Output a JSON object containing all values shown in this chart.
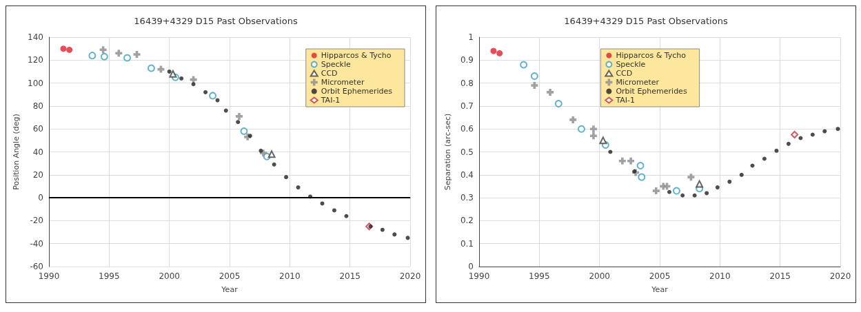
{
  "chart_data": [
    {
      "type": "scatter",
      "title": "16439+4329 D15 Past Observations",
      "xlabel": "Year",
      "ylabel": "Position Angle (deg)",
      "xlim": [
        1990,
        2020
      ],
      "xticks": [
        1990,
        1995,
        2000,
        2005,
        2010,
        2015,
        2020
      ],
      "ylim": [
        -60,
        140
      ],
      "yticks": [
        -60,
        -40,
        -20,
        0,
        20,
        40,
        60,
        80,
        100,
        120,
        140
      ],
      "grid": true,
      "legend": "top right",
      "ref_lines": [
        {
          "axis": "y",
          "value": 0,
          "color": "#000000"
        }
      ],
      "series": [
        {
          "name": "Hipparcos & Tycho",
          "color": "#e0202e",
          "marker": "circle",
          "x": [
            1991.2,
            1991.7
          ],
          "values": [
            130,
            129
          ]
        },
        {
          "name": "Speckle",
          "color": "#3a9fc0",
          "marker": "circle",
          "x": [
            1993.6,
            1994.6,
            1996.5,
            1998.5,
            2000.5,
            2003.6,
            2006.2,
            2008.1
          ],
          "values": [
            124,
            123,
            122,
            113,
            105,
            89,
            58,
            36
          ]
        },
        {
          "name": "CCD",
          "color": "#404040",
          "marker": "triangle",
          "x": [
            2000.3,
            2008.5
          ],
          "values": [
            108,
            38
          ]
        },
        {
          "name": "Micrometer",
          "color": "#8a8a8a",
          "marker": "cross",
          "x": [
            1994.5,
            1995.8,
            1997.3,
            1999.3,
            2002,
            2005.8,
            2006.5,
            2007.8
          ],
          "values": [
            129,
            126,
            125,
            112,
            103,
            71,
            53,
            39
          ]
        },
        {
          "name": "Orbit Ephemerides",
          "color": "#202020",
          "marker": "circle",
          "x": [
            2000,
            2001,
            2002,
            2003,
            2004,
            2004.7,
            2005.7,
            2006.7,
            2007.6,
            2008.7,
            2009.7,
            2010.7,
            2011.7,
            2012.7,
            2013.7,
            2014.7,
            2016.7,
            2017.7,
            2018.7,
            2019.8
          ],
          "values": [
            110,
            104,
            99,
            92,
            85,
            76,
            66,
            54,
            41,
            29,
            18,
            9,
            1,
            -5,
            -11,
            -16,
            -25,
            -28,
            -32,
            -35
          ]
        },
        {
          "name": "TAI-1",
          "color": "#c83040",
          "marker": "diamond",
          "x": [
            2016.6
          ],
          "values": [
            -25
          ]
        }
      ]
    },
    {
      "type": "scatter",
      "title": "16439+4329 D15 Past Observations",
      "xlabel": "Year",
      "ylabel": "Separation (arc-sec)",
      "xlim": [
        1990,
        2020
      ],
      "xticks": [
        1990,
        1995,
        2000,
        2005,
        2010,
        2015,
        2020
      ],
      "ylim": [
        0,
        1
      ],
      "yticks": [
        0,
        0.1,
        0.2,
        0.3,
        0.4,
        0.5,
        0.6,
        0.7,
        0.8,
        0.9,
        1
      ],
      "grid": true,
      "legend": "top",
      "series": [
        {
          "name": "Hipparcos & Tycho",
          "color": "#e0202e",
          "marker": "circle",
          "x": [
            1991.2,
            1991.7
          ],
          "values": [
            0.94,
            0.93
          ]
        },
        {
          "name": "Speckle",
          "color": "#3a9fc0",
          "marker": "circle",
          "x": [
            1993.7,
            1994.6,
            1996.6,
            1998.5,
            2000.5,
            2003.4,
            2003.5,
            2006.4,
            2008.3
          ],
          "values": [
            0.88,
            0.83,
            0.71,
            0.6,
            0.53,
            0.44,
            0.39,
            0.33,
            0.34
          ]
        },
        {
          "name": "CCD",
          "color": "#404040",
          "marker": "triangle",
          "x": [
            2000.3,
            2008.3
          ],
          "values": [
            0.55,
            0.36
          ]
        },
        {
          "name": "Micrometer",
          "color": "#8a8a8a",
          "marker": "cross",
          "x": [
            1994.6,
            1995.9,
            1997.8,
            1999.5,
            1999.5,
            2001.9,
            2002.6,
            2003,
            2004.7,
            2005.3,
            2005.6,
            2007.6
          ],
          "values": [
            0.79,
            0.76,
            0.64,
            0.6,
            0.57,
            0.46,
            0.46,
            0.41,
            0.33,
            0.35,
            0.35,
            0.39
          ]
        },
        {
          "name": "Orbit Ephemerides",
          "color": "#202020",
          "marker": "circle",
          "x": [
            2000.9,
            2002.9,
            2005.8,
            2006.9,
            2007.9,
            2008.9,
            2009.8,
            2010.8,
            2011.8,
            2012.7,
            2013.7,
            2014.7,
            2015.7,
            2016.7,
            2017.7,
            2018.7,
            2019.8
          ],
          "values": [
            0.5,
            0.415,
            0.325,
            0.31,
            0.31,
            0.32,
            0.345,
            0.37,
            0.4,
            0.44,
            0.47,
            0.505,
            0.535,
            0.56,
            0.575,
            0.59,
            0.6
          ]
        },
        {
          "name": "TAI-1",
          "color": "#c83040",
          "marker": "diamond",
          "x": [
            2016.2
          ],
          "values": [
            0.575
          ]
        }
      ]
    }
  ]
}
